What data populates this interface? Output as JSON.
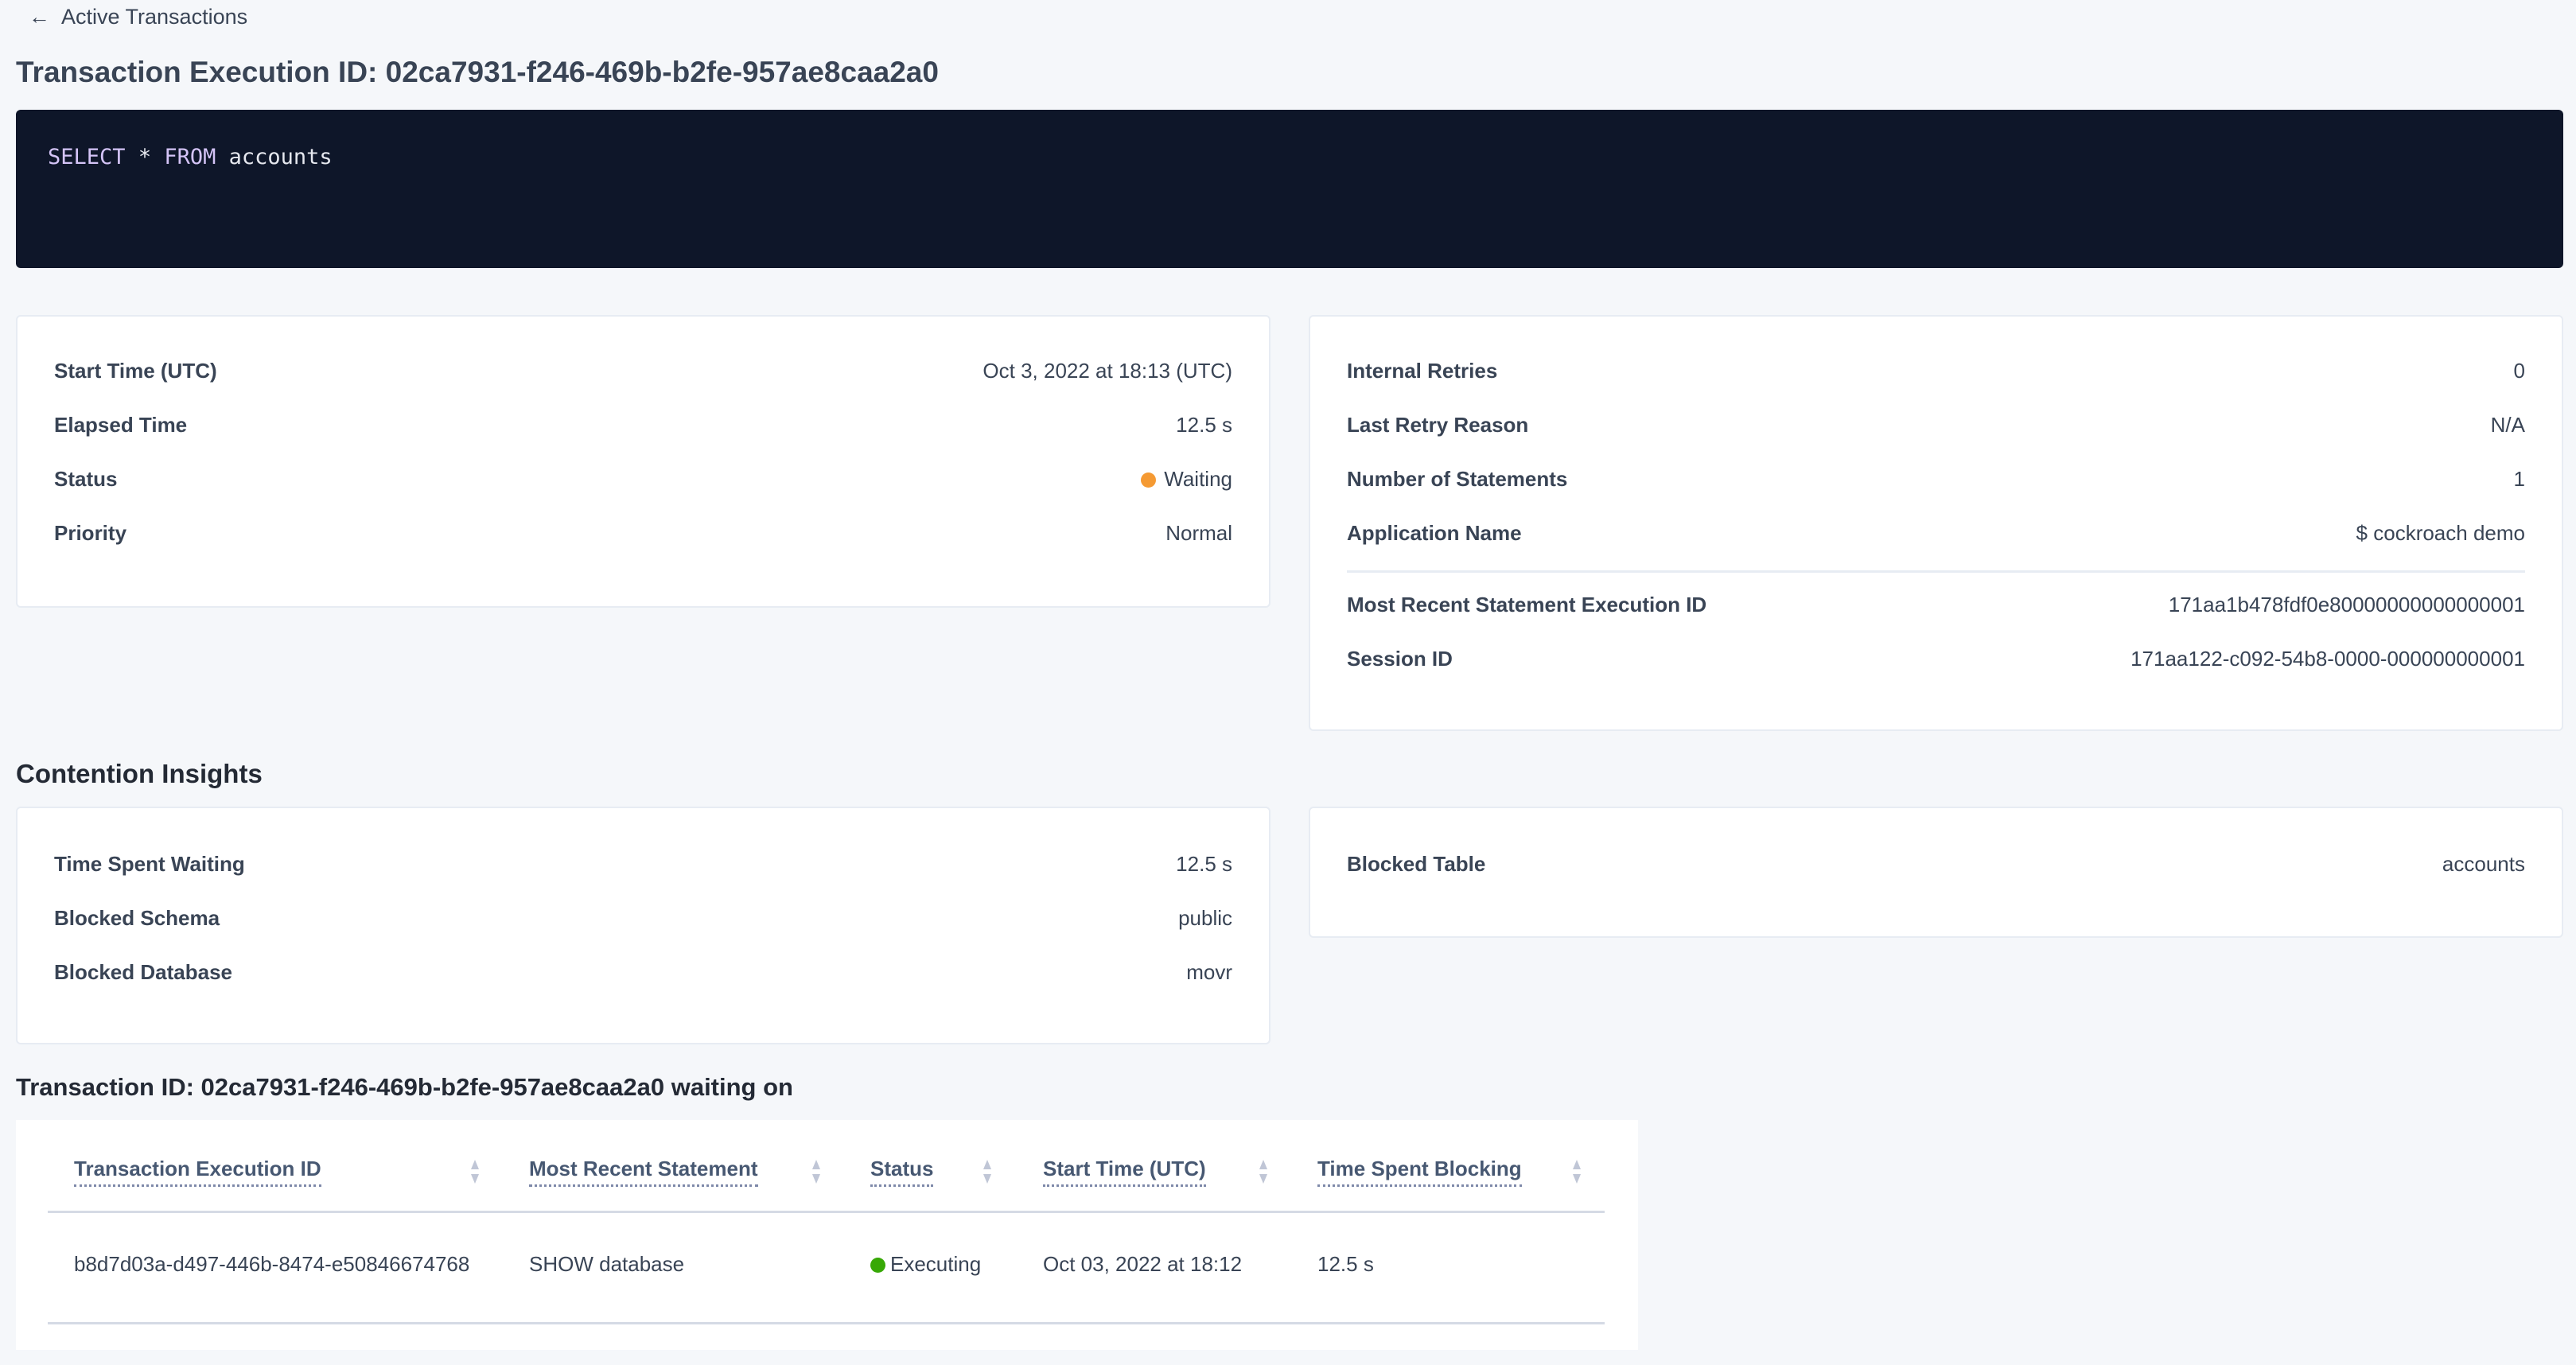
{
  "breadcrumb": {
    "back_label": "Active Transactions",
    "icon": "arrow-left-icon"
  },
  "title": "Transaction Execution ID: 02ca7931-f246-469b-b2fe-957ae8caa2a0",
  "sql": {
    "kw1": "SELECT",
    "star": "*",
    "kw2": "FROM",
    "table": "accounts"
  },
  "details_left": [
    {
      "label": "Start Time (UTC)",
      "value": "Oct 3, 2022 at 18:13 (UTC)"
    },
    {
      "label": "Elapsed Time",
      "value": "12.5 s"
    },
    {
      "label": "Status",
      "value": "Waiting",
      "status_color": "#f59a33"
    },
    {
      "label": "Priority",
      "value": "Normal"
    }
  ],
  "details_right": [
    {
      "label": "Internal Retries",
      "value": "0"
    },
    {
      "label": "Last Retry Reason",
      "value": "N/A"
    },
    {
      "label": "Number of Statements",
      "value": "1"
    },
    {
      "label": "Application Name",
      "value": "$ cockroach demo"
    },
    {
      "label": "Most Recent Statement Execution ID",
      "value": "171aa1b478fdf0e80000000000000001"
    },
    {
      "label": "Session ID",
      "value": "171aa122-c092-54b8-0000-000000000001"
    }
  ],
  "contention": {
    "heading": "Contention Insights",
    "left": [
      {
        "label": "Time Spent Waiting",
        "value": "12.5 s"
      },
      {
        "label": "Blocked Schema",
        "value": "public"
      },
      {
        "label": "Blocked Database",
        "value": "movr"
      }
    ],
    "right": [
      {
        "label": "Blocked Table",
        "value": "accounts"
      }
    ]
  },
  "waiting": {
    "heading": "Transaction ID: 02ca7931-f246-469b-b2fe-957ae8caa2a0 waiting on",
    "columns": [
      "Transaction Execution ID",
      "Most Recent Statement",
      "Status",
      "Start Time (UTC)",
      "Time Spent Blocking"
    ],
    "rows": [
      {
        "id": "b8d7d03a-d497-446b-8474-e50846674768",
        "statement": "SHOW database",
        "status": "Executing",
        "status_color": "#37a806",
        "start": "Oct 03, 2022 at 18:12",
        "blocking": "12.5 s"
      }
    ]
  },
  "colors": {
    "link": "#0055ff",
    "code_bg": "#0e1629",
    "keyword": "#d4c4f7"
  }
}
